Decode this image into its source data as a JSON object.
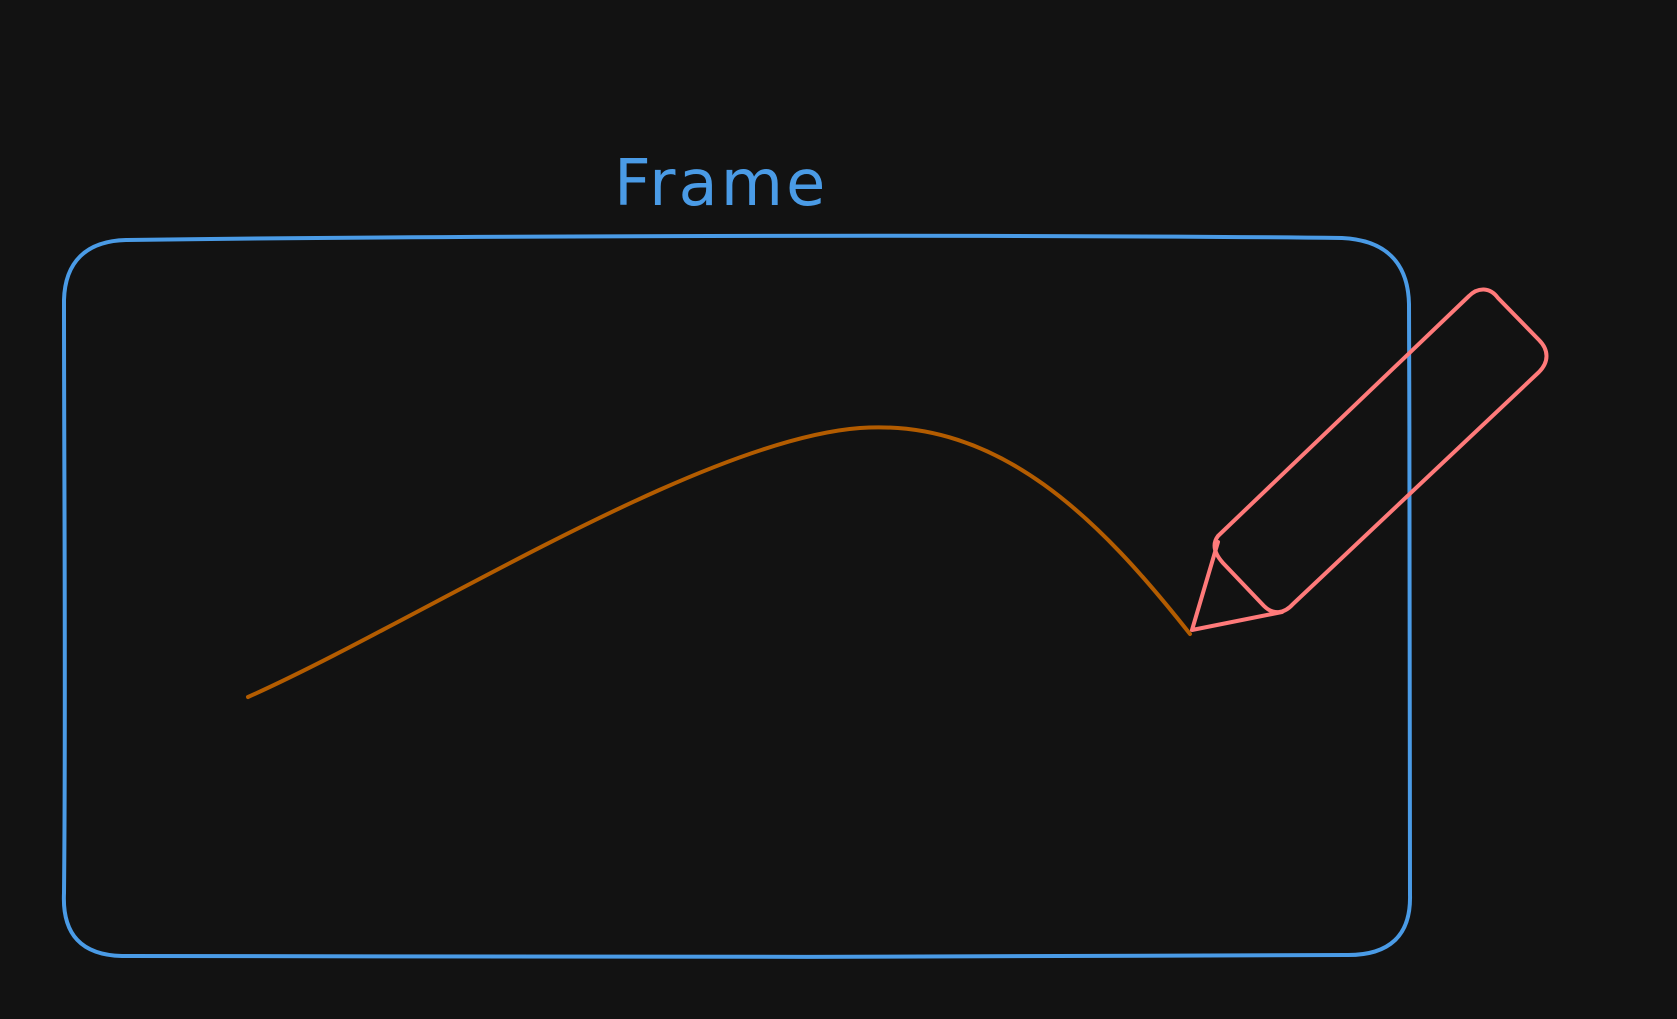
{
  "canvas": {
    "background": "#121212"
  },
  "frame": {
    "title": "Frame",
    "stroke_color": "#4a9be6",
    "title_color": "#4a9be6"
  },
  "stroke": {
    "color": "#b35c00",
    "kind": "freehand-curve"
  },
  "pencil": {
    "icon": "pencil-icon",
    "color": "#ff7a7a"
  }
}
